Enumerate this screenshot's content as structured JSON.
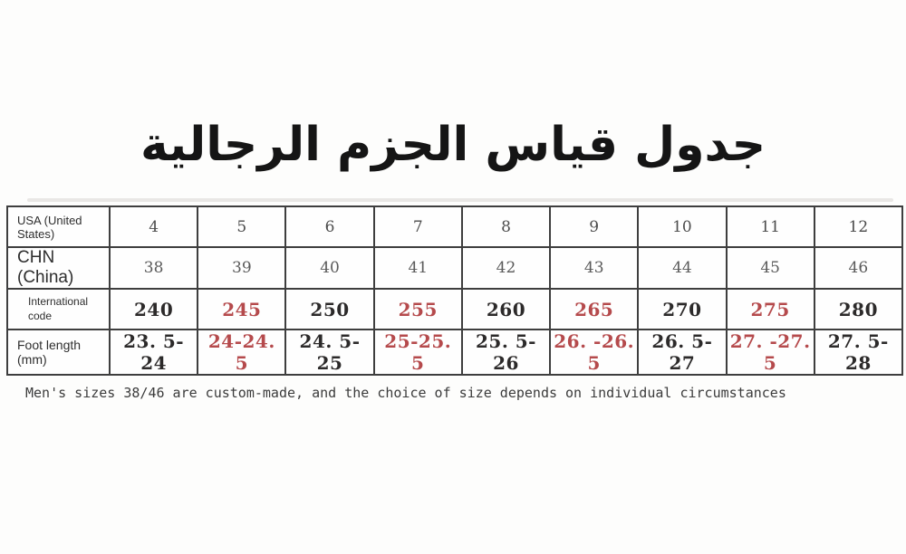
{
  "colors": {
    "highlight_red": "#b54a4c",
    "text_black": "#2c2a2a",
    "grid_border": "#3e3e3e",
    "background": "#fdfdfc"
  },
  "chart_data": {
    "type": "table",
    "title": "جدول قياس الجزم الرجالية",
    "note": "Men's sizes 38/46 are custom-made, and the choice of size depends on individual circumstances",
    "highlight_color": "#b54a4c",
    "rows": [
      {
        "label": "USA (United States)",
        "cells": [
          {
            "v": "4",
            "red": false
          },
          {
            "v": "5",
            "red": false
          },
          {
            "v": "6",
            "red": false
          },
          {
            "v": "7",
            "red": false
          },
          {
            "v": "8",
            "red": false
          },
          {
            "v": "9",
            "red": false
          },
          {
            "v": "10",
            "red": false
          },
          {
            "v": "11",
            "red": false
          },
          {
            "v": "12",
            "red": false
          }
        ]
      },
      {
        "label": "CHN (China)",
        "cells": [
          {
            "v": "38",
            "red": false
          },
          {
            "v": "39",
            "red": false
          },
          {
            "v": "40",
            "red": false
          },
          {
            "v": "41",
            "red": false
          },
          {
            "v": "42",
            "red": false
          },
          {
            "v": "43",
            "red": false
          },
          {
            "v": "44",
            "red": false
          },
          {
            "v": "45",
            "red": false
          },
          {
            "v": "46",
            "red": false
          }
        ]
      },
      {
        "label": "International code",
        "cells": [
          {
            "v": "240",
            "red": false
          },
          {
            "v": "245",
            "red": true
          },
          {
            "v": "250",
            "red": false
          },
          {
            "v": "255",
            "red": true
          },
          {
            "v": "260",
            "red": false
          },
          {
            "v": "265",
            "red": true
          },
          {
            "v": "270",
            "red": false
          },
          {
            "v": "275",
            "red": true
          },
          {
            "v": "280",
            "red": false
          }
        ]
      },
      {
        "label": "Foot length (mm)",
        "cells": [
          {
            "v": "23. 5-24",
            "red": false
          },
          {
            "v": "24-24. 5",
            "red": true
          },
          {
            "v": "24. 5-25",
            "red": false
          },
          {
            "v": "25-25. 5",
            "red": true
          },
          {
            "v": "25. 5-26",
            "red": false
          },
          {
            "v": "26. -26. 5",
            "red": true
          },
          {
            "v": "26. 5-27",
            "red": false
          },
          {
            "v": "27. -27. 5",
            "red": true
          },
          {
            "v": "27. 5-28",
            "red": false
          }
        ]
      }
    ]
  }
}
